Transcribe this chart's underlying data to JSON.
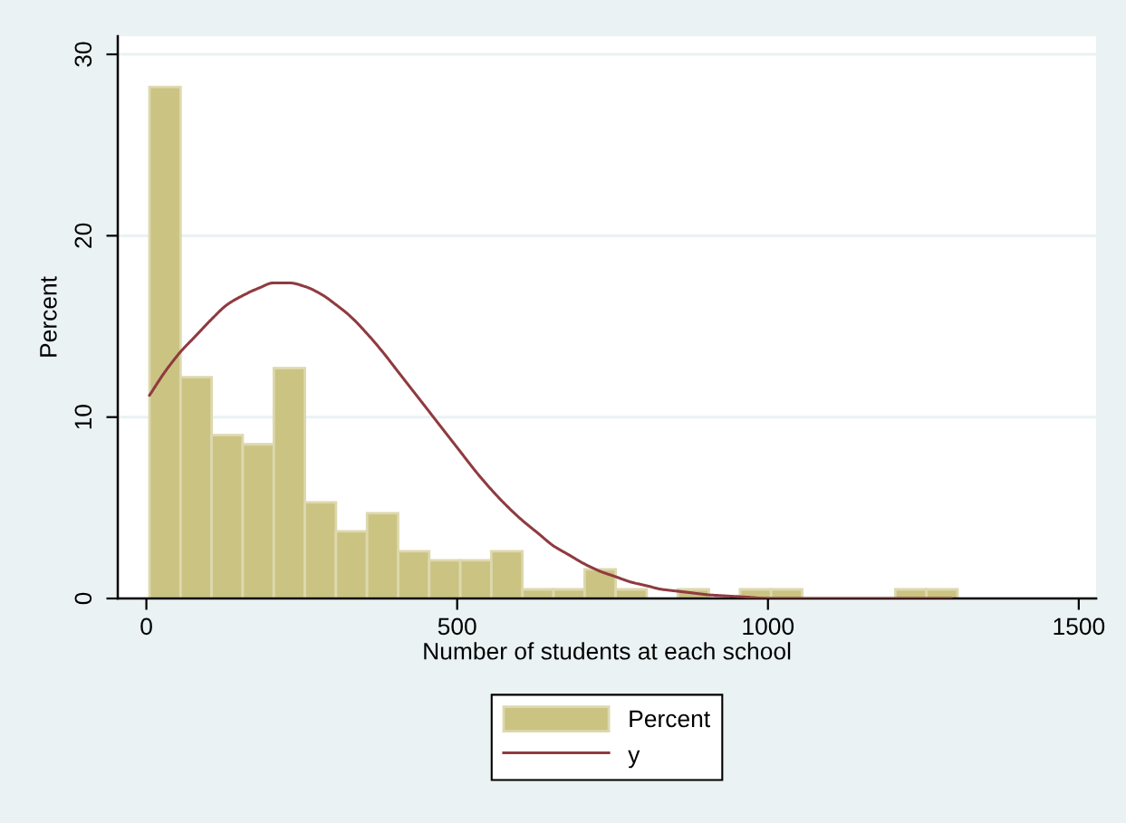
{
  "chart_data": {
    "type": "histogram",
    "xlabel": "Number of students at each school",
    "ylabel": "Percent",
    "bins": [
      5,
      55,
      105,
      155,
      205,
      255,
      305,
      355,
      405,
      455,
      505,
      555,
      605,
      655,
      705,
      755,
      805,
      855,
      905,
      955,
      1005,
      1055,
      1105,
      1155,
      1205,
      1255,
      1305
    ],
    "series": [
      {
        "name": "Percent",
        "color": "#cbc382",
        "values": [
          28.2,
          12.2,
          9.0,
          8.5,
          12.7,
          5.3,
          3.7,
          4.7,
          2.6,
          2.1,
          2.1,
          2.6,
          0.5,
          0.5,
          1.6,
          0.5,
          0,
          0.5,
          0,
          0.5,
          0.5,
          0,
          0,
          0,
          0.5,
          0.5
        ]
      },
      {
        "name": "y",
        "type": "line",
        "color": "#8f3b40",
        "x": [
          5,
          30,
          55,
          80,
          105,
          130,
          155,
          180,
          205,
          230,
          255,
          280,
          305,
          330,
          355,
          380,
          405,
          430,
          455,
          480,
          505,
          530,
          555,
          580,
          605,
          630,
          655,
          680,
          705,
          730,
          755,
          780,
          805,
          830,
          855,
          880,
          905,
          955,
          1005,
          1055,
          1105,
          1155,
          1205,
          1255,
          1295
        ],
        "values": [
          11.2,
          12.5,
          13.6,
          14.5,
          15.4,
          16.2,
          16.7,
          17.1,
          17.4,
          17.4,
          17.2,
          16.8,
          16.2,
          15.5,
          14.6,
          13.6,
          12.5,
          11.4,
          10.3,
          9.2,
          8.1,
          7.0,
          6.0,
          5.1,
          4.3,
          3.6,
          2.9,
          2.4,
          1.9,
          1.5,
          1.2,
          0.9,
          0.7,
          0.5,
          0.4,
          0.3,
          0.2,
          0.1,
          0,
          0,
          0,
          0,
          0,
          0,
          0
        ]
      }
    ],
    "xlim": [
      -46,
      1528
    ],
    "ylim": [
      0,
      31
    ],
    "xticks": [
      0,
      500,
      1000,
      1500
    ],
    "yticks": [
      0,
      10,
      20,
      30
    ],
    "grid": "y",
    "legend": "bottom"
  }
}
